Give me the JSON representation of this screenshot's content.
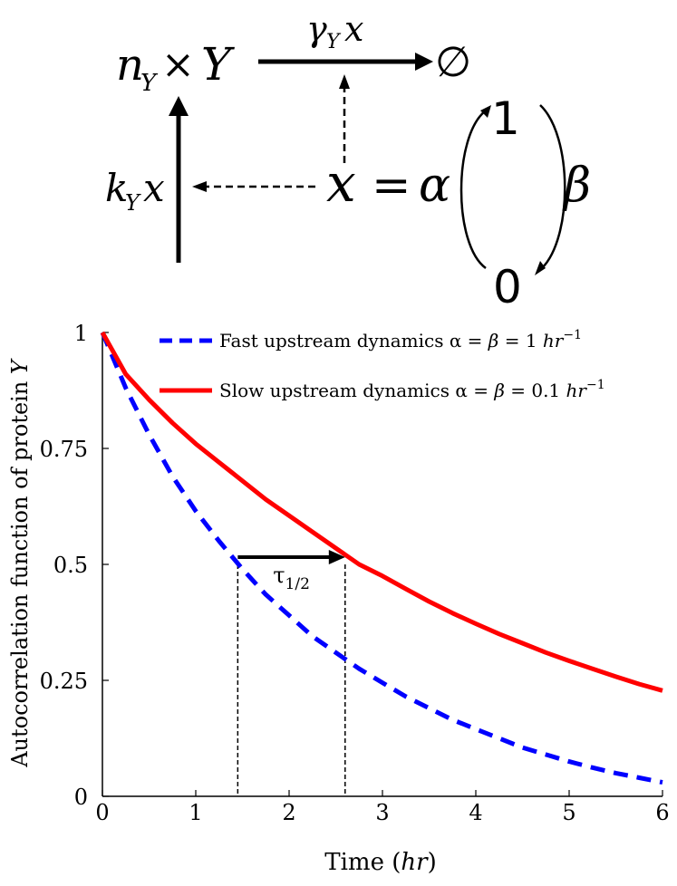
{
  "diagram": {
    "species": {
      "n": "n",
      "n_sub": "Y",
      "times": "×",
      "Y": "Y"
    },
    "degradation": {
      "rate": "γ",
      "rate_sub": "Y",
      "var": "x",
      "product": "∅"
    },
    "production": {
      "rate": "k",
      "rate_sub": "Y",
      "var": "x"
    },
    "switch": {
      "lhs": "x",
      "eq": "=",
      "alpha": "α",
      "beta": "β",
      "state_on": "1",
      "state_off": "0"
    }
  },
  "chart_data": {
    "type": "line",
    "xlabel_prefix": "Time (",
    "xlabel_unit": "hr",
    "xlabel_suffix": ")",
    "ylabel_prefix": "Autocorrelation function of protein ",
    "ylabel_var": "Y",
    "xlim": [
      0,
      6
    ],
    "ylim": [
      0,
      1
    ],
    "xticks": [
      0,
      1,
      2,
      3,
      4,
      5,
      6
    ],
    "xtick_labels": [
      "0",
      "1",
      "2",
      "3",
      "4",
      "5",
      "6"
    ],
    "yticks": [
      0,
      0.25,
      0.5,
      0.75,
      1
    ],
    "ytick_labels": [
      "0",
      "0.25",
      "0.5",
      "0.75",
      "1"
    ],
    "grid": false,
    "legend_position": "top-right",
    "series": [
      {
        "name": "Fast upstream dynamics α = β = 1 hr⁻¹",
        "legend_text": "Fast upstream dynamics α = ",
        "legend_beta": "β",
        "legend_value": " = 1 ",
        "legend_unit": "hr",
        "legend_exp": "−1",
        "color": "#0000ff",
        "style": "dashed",
        "x": [
          0,
          0.25,
          0.5,
          0.75,
          1,
          1.25,
          1.5,
          1.75,
          2,
          2.25,
          2.5,
          2.75,
          3,
          3.25,
          3.5,
          3.75,
          4,
          4.25,
          4.5,
          4.75,
          5,
          5.25,
          5.5,
          5.75,
          6
        ],
        "y": [
          1.0,
          0.88,
          0.78,
          0.69,
          0.615,
          0.55,
          0.49,
          0.435,
          0.39,
          0.345,
          0.31,
          0.275,
          0.245,
          0.215,
          0.19,
          0.165,
          0.145,
          0.125,
          0.105,
          0.09,
          0.075,
          0.062,
          0.05,
          0.04,
          0.03
        ]
      },
      {
        "name": "Slow upstream dynamics α = β = 0.1 hr⁻¹",
        "legend_text": "Slow upstream dynamics α = ",
        "legend_beta": "β",
        "legend_value": " = 0.1 ",
        "legend_unit": "hr",
        "legend_exp": "−1",
        "color": "#ff0000",
        "style": "solid",
        "x": [
          0,
          0.25,
          0.5,
          0.75,
          1,
          1.25,
          1.5,
          1.75,
          2,
          2.25,
          2.5,
          2.75,
          3,
          3.25,
          3.5,
          3.75,
          4,
          4.25,
          4.5,
          4.75,
          5,
          5.25,
          5.5,
          5.75,
          6
        ],
        "y": [
          1.0,
          0.91,
          0.855,
          0.805,
          0.76,
          0.72,
          0.68,
          0.64,
          0.605,
          0.57,
          0.535,
          0.5,
          0.475,
          0.447,
          0.42,
          0.395,
          0.372,
          0.35,
          0.33,
          0.31,
          0.292,
          0.275,
          0.258,
          0.242,
          0.228
        ]
      }
    ],
    "annotation": {
      "label": "τ",
      "label_sub": "1/2",
      "x_start": 1.45,
      "x_end": 2.6,
      "y": 0.5,
      "fast_y_at_end": 0.31
    }
  }
}
